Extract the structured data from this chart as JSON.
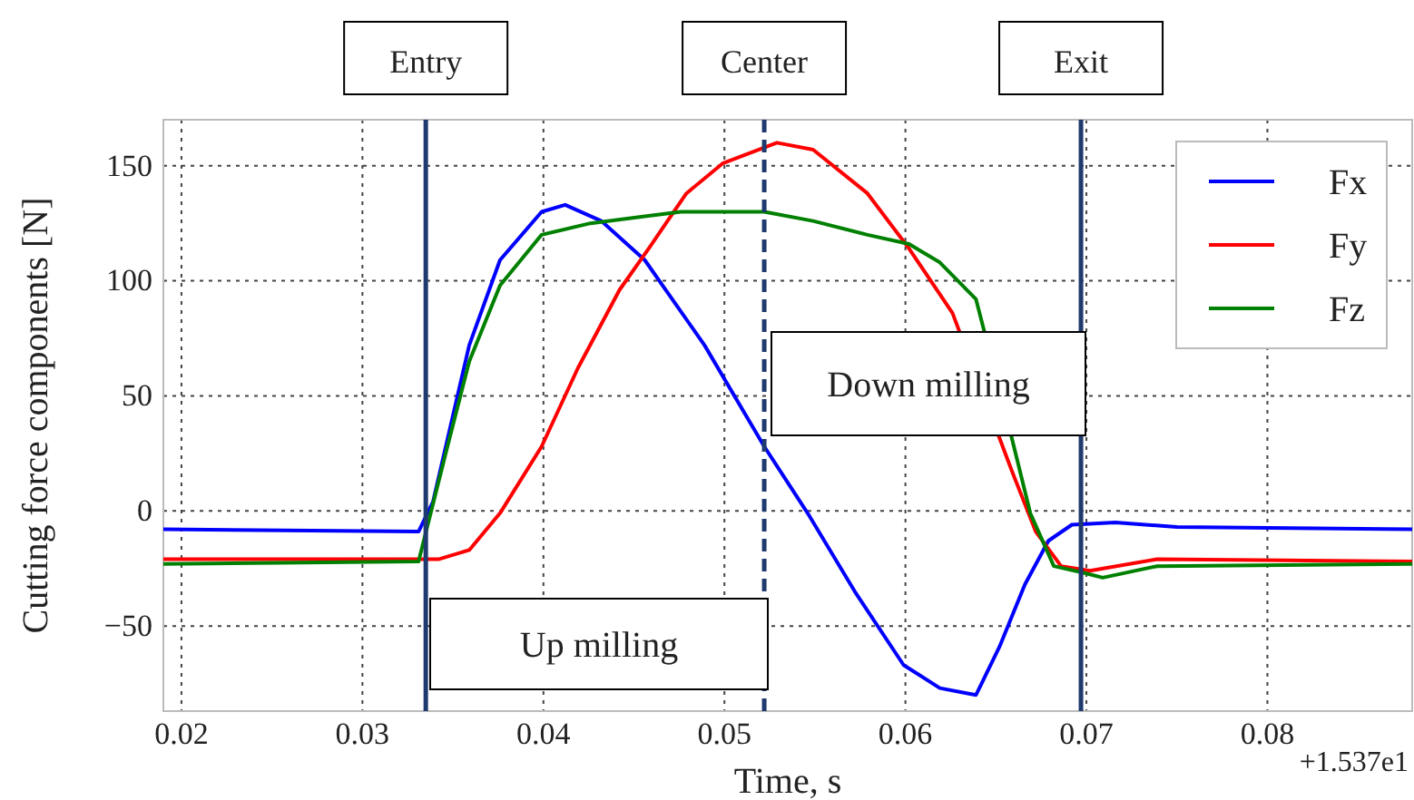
{
  "chart_data": {
    "type": "line",
    "xlabel": "Time, s",
    "ylabel": "Cutting force components [N]",
    "xlim": [
      0.019,
      0.088
    ],
    "ylim": [
      -87,
      170
    ],
    "xticks": [
      0.02,
      0.03,
      0.04,
      0.05,
      0.06,
      0.07,
      0.08
    ],
    "yticks": [
      -50,
      0,
      50,
      100,
      150
    ],
    "grid": true,
    "legend": "top right",
    "line_style": "solid",
    "marker": "none",
    "series": [
      {
        "name": "Fx",
        "color": "#0000ff",
        "x": [
          0.019,
          0.0331,
          0.0339,
          0.0359,
          0.0376,
          0.0399,
          0.0412,
          0.0432,
          0.0456,
          0.0489,
          0.0522,
          0.0546,
          0.0572,
          0.0599,
          0.0619,
          0.0639,
          0.0652,
          0.0666,
          0.0679,
          0.0692,
          0.0716,
          0.075,
          0.088
        ],
        "values": [
          -8,
          -9,
          4,
          72,
          109,
          130,
          133,
          126,
          109,
          72,
          28,
          -1,
          -35,
          -67,
          -77,
          -80,
          -59,
          -32,
          -13,
          -6,
          -5,
          -7,
          -8
        ]
      },
      {
        "name": "Fy",
        "color": "#ff0000",
        "x": [
          0.019,
          0.0342,
          0.0359,
          0.0376,
          0.0399,
          0.0419,
          0.0442,
          0.0459,
          0.0479,
          0.0499,
          0.0529,
          0.0549,
          0.0579,
          0.0602,
          0.0626,
          0.0659,
          0.0672,
          0.0686,
          0.0702,
          0.0739,
          0.088
        ],
        "values": [
          -21,
          -21,
          -17,
          -1,
          28,
          62,
          96,
          115,
          138,
          151,
          160,
          157,
          138,
          114,
          86,
          17,
          -9,
          -24,
          -26,
          -21,
          -22
        ]
      },
      {
        "name": "Fz",
        "color": "#008000",
        "x": [
          0.019,
          0.0331,
          0.0346,
          0.0359,
          0.0376,
          0.0399,
          0.0426,
          0.0456,
          0.0476,
          0.0522,
          0.0549,
          0.0579,
          0.0602,
          0.0619,
          0.0639,
          0.0659,
          0.0669,
          0.0682,
          0.0699,
          0.0709,
          0.0739,
          0.088
        ],
        "values": [
          -23,
          -22,
          25,
          65,
          98,
          120,
          125,
          128,
          130,
          130,
          126,
          120,
          116,
          108,
          92,
          31,
          -1,
          -24,
          -27,
          -29,
          -24,
          -23
        ]
      }
    ],
    "ref_lines": [
      {
        "axis": "x",
        "value": 0.0335,
        "label": "Entry",
        "color": "#1f3a6e",
        "line_style": "solid"
      },
      {
        "axis": "x",
        "value": 0.0522,
        "label": "Center",
        "color": "#1f3a6e",
        "line_style": "dashed"
      },
      {
        "axis": "x",
        "value": 0.0697,
        "label": "Exit",
        "color": "#1f3a6e",
        "line_style": "solid"
      }
    ],
    "annotations": [
      "Up milling",
      "Down milling",
      "+1.537e1"
    ]
  }
}
